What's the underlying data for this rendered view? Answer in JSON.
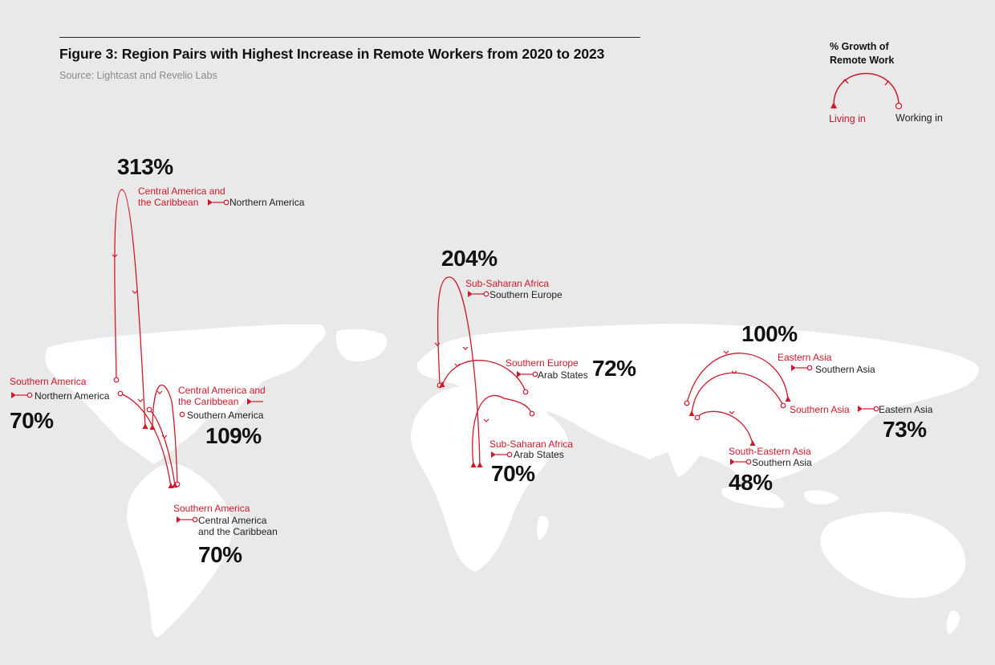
{
  "figure": {
    "title": "Figure 3: Region Pairs with Highest Increase in Remote Workers from 2020 to 2023",
    "source": "Source: Lightcast and Revelio Labs"
  },
  "legend": {
    "title_line1": "% Growth of",
    "title_line2": "Remote Work",
    "living_in": "Living in",
    "working_in": "Working in"
  },
  "colors": {
    "accent": "#d0182a",
    "land": "#ffffff",
    "ocean": "#e9e9e9",
    "text": "#111111"
  },
  "pairs": [
    {
      "id": "cac-na",
      "growth": "313%",
      "living_in": [
        "Central America and",
        "the Caribbean"
      ],
      "working_in": [
        "Northern America"
      ]
    },
    {
      "id": "sa-na",
      "growth": "70%",
      "living_in": [
        "Southern America"
      ],
      "working_in": [
        "Northern America"
      ]
    },
    {
      "id": "cac-sa",
      "growth": "109%",
      "living_in": [
        "Central America and",
        "the Caribbean"
      ],
      "working_in": [
        "Southern America"
      ]
    },
    {
      "id": "sa-cac",
      "growth": "70%",
      "living_in": [
        "Southern America"
      ],
      "working_in": [
        "Central America",
        "and the Caribbean"
      ]
    },
    {
      "id": "ssa-se",
      "growth": "204%",
      "living_in": [
        "Sub-Saharan Africa"
      ],
      "working_in": [
        "Southern Europe"
      ]
    },
    {
      "id": "se-as",
      "growth": "72%",
      "living_in": [
        "Southern Europe"
      ],
      "working_in": [
        "Arab States"
      ]
    },
    {
      "id": "ssa-as",
      "growth": "70%",
      "living_in": [
        "Sub-Saharan Africa"
      ],
      "working_in": [
        "Arab States"
      ]
    },
    {
      "id": "ea-sa",
      "growth": "100%",
      "living_in": [
        "Eastern Asia"
      ],
      "working_in": [
        "Southern Asia"
      ]
    },
    {
      "id": "sa-ea",
      "growth": "73%",
      "living_in": [
        "Southern Asia"
      ],
      "working_in": [
        "Eastern Asia"
      ]
    },
    {
      "id": "sea-sa",
      "growth": "48%",
      "living_in": [
        "South-Eastern Asia"
      ],
      "working_in": [
        "Southern Asia"
      ]
    }
  ]
}
